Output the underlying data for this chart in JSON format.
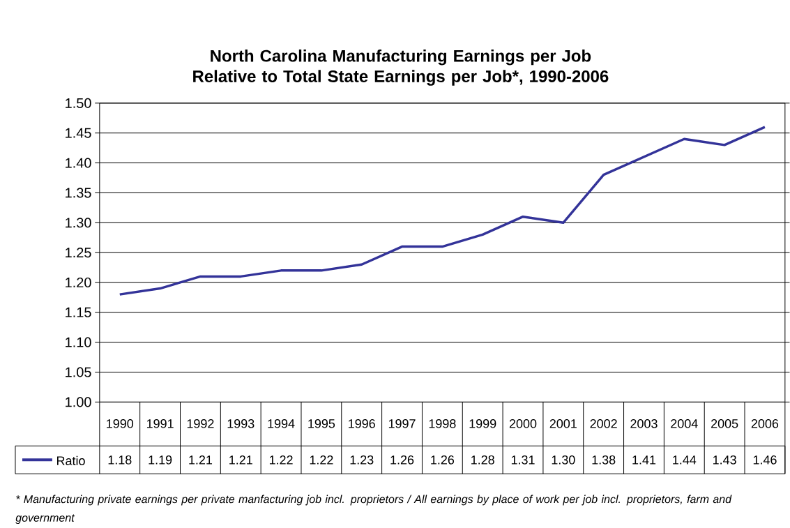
{
  "chart_data": {
    "type": "line",
    "title": "North Carolina Manufacturing Earnings per Job Relative to Total State Earnings per Job*, 1990-2006",
    "categories": [
      "1990",
      "1991",
      "1992",
      "1993",
      "1994",
      "1995",
      "1996",
      "1997",
      "1998",
      "1999",
      "2000",
      "2001",
      "2002",
      "2003",
      "2004",
      "2005",
      "2006"
    ],
    "series": [
      {
        "name": "Ratio",
        "color": "#333399",
        "values": [
          1.18,
          1.19,
          1.21,
          1.21,
          1.22,
          1.22,
          1.23,
          1.26,
          1.26,
          1.28,
          1.31,
          1.3,
          1.38,
          1.41,
          1.44,
          1.43,
          1.46
        ],
        "value_labels": [
          "1.18",
          "1.19",
          "1.21",
          "1.21",
          "1.22",
          "1.22",
          "1.23",
          "1.26",
          "1.26",
          "1.28",
          "1.31",
          "1.30",
          "1.38",
          "1.41",
          "1.44",
          "1.43",
          "1.46"
        ]
      }
    ],
    "ylim": [
      1.0,
      1.5
    ],
    "yticks": [
      {
        "value": 1.0,
        "label": "1.00"
      },
      {
        "value": 1.05,
        "label": "1.05"
      },
      {
        "value": 1.1,
        "label": "1.10"
      },
      {
        "value": 1.15,
        "label": "1.15"
      },
      {
        "value": 1.2,
        "label": "1.20"
      },
      {
        "value": 1.25,
        "label": "1.25"
      },
      {
        "value": 1.3,
        "label": "1.30"
      },
      {
        "value": 1.35,
        "label": "1.35"
      },
      {
        "value": 1.4,
        "label": "1.40"
      },
      {
        "value": 1.45,
        "label": "1.45"
      },
      {
        "value": 1.5,
        "label": "1.50"
      }
    ],
    "grid": "y",
    "legend": "bottom left",
    "marker": "none",
    "line_style": "solid",
    "annotations": [
      "* Manufacturing private earnings per private manfacturing job incl. proprietors / All earnings by place of work per job incl. proprietors, farm and government"
    ]
  }
}
